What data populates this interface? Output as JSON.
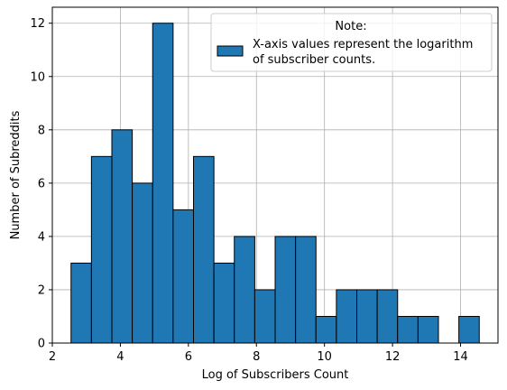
{
  "chart_data": {
    "type": "bar",
    "subtype": "histogram",
    "xlabel": "Log of Subscribers Count",
    "ylabel": "Number of Subreddits",
    "xlim": [
      2.0,
      15.1
    ],
    "ylim": [
      0,
      12.6
    ],
    "xticks": [
      2,
      4,
      6,
      8,
      10,
      12,
      14
    ],
    "yticks": [
      0,
      2,
      4,
      6,
      8,
      10,
      12
    ],
    "grid": true,
    "bar_color": "#1f77b4",
    "edge_color": "#000000",
    "bins": [
      {
        "start": 2.55,
        "end": 3.15,
        "count": 3
      },
      {
        "start": 3.15,
        "end": 3.75,
        "count": 7
      },
      {
        "start": 3.75,
        "end": 4.35,
        "count": 8
      },
      {
        "start": 4.35,
        "end": 4.95,
        "count": 6
      },
      {
        "start": 4.95,
        "end": 5.55,
        "count": 12
      },
      {
        "start": 5.55,
        "end": 6.15,
        "count": 5
      },
      {
        "start": 6.15,
        "end": 6.75,
        "count": 7
      },
      {
        "start": 6.75,
        "end": 7.35,
        "count": 3
      },
      {
        "start": 7.35,
        "end": 7.95,
        "count": 4
      },
      {
        "start": 7.95,
        "end": 8.55,
        "count": 2
      },
      {
        "start": 8.55,
        "end": 9.15,
        "count": 4
      },
      {
        "start": 9.15,
        "end": 9.75,
        "count": 4
      },
      {
        "start": 9.75,
        "end": 10.35,
        "count": 1
      },
      {
        "start": 10.35,
        "end": 10.95,
        "count": 2
      },
      {
        "start": 10.95,
        "end": 11.55,
        "count": 2
      },
      {
        "start": 11.55,
        "end": 12.15,
        "count": 2
      },
      {
        "start": 12.15,
        "end": 12.75,
        "count": 1
      },
      {
        "start": 12.75,
        "end": 13.35,
        "count": 1
      },
      {
        "start": 13.35,
        "end": 13.95,
        "count": 0
      },
      {
        "start": 13.95,
        "end": 14.55,
        "count": 1
      }
    ],
    "legend": {
      "position": "top-right",
      "title": "Note:",
      "entries": [
        "X-axis values represent the logarithm",
        "of subscriber counts."
      ]
    }
  }
}
